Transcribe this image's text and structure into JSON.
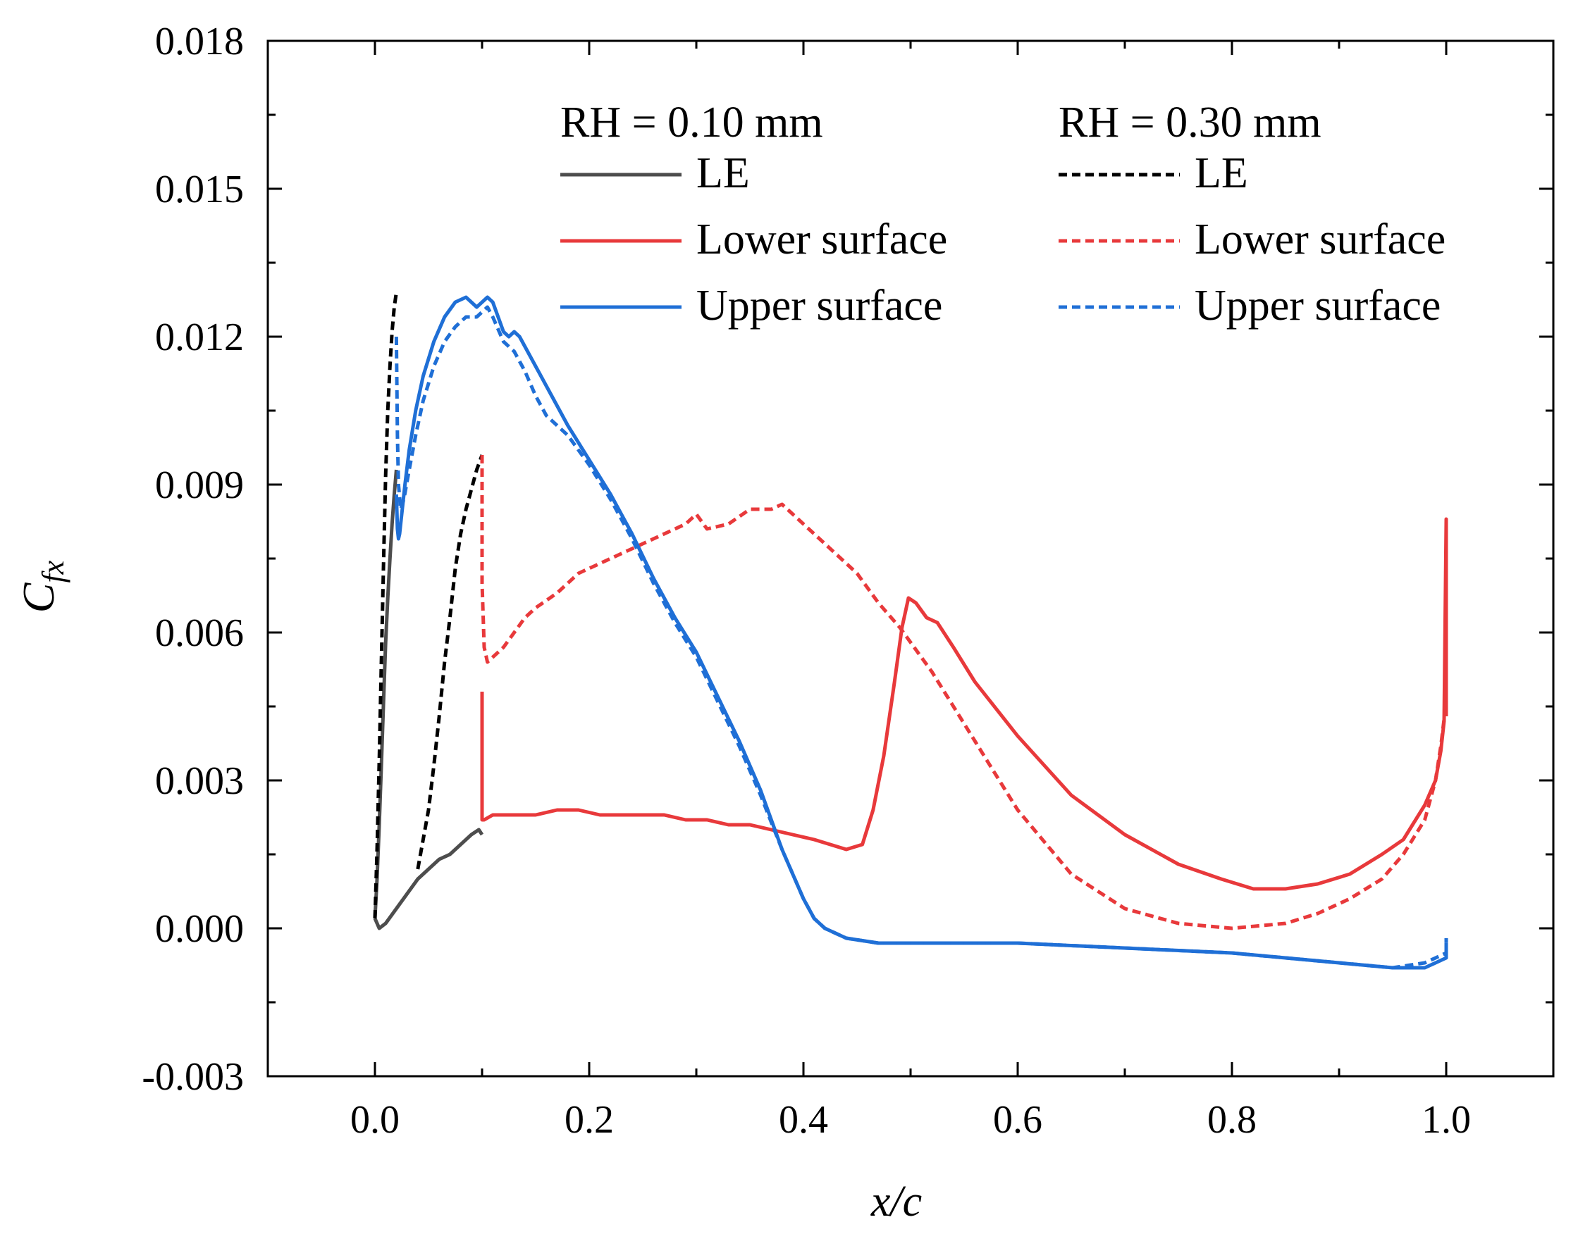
{
  "chart_data": {
    "type": "line",
    "title": "",
    "xlabel": "x/c",
    "ylabel_main": "C",
    "ylabel_sub": "fx",
    "xlim": [
      -0.1,
      1.1
    ],
    "ylim": [
      -0.003,
      0.018
    ],
    "xticks": [
      0.0,
      0.2,
      0.4,
      0.6,
      0.8,
      1.0
    ],
    "xtick_labels": [
      "0.0",
      "0.2",
      "0.4",
      "0.6",
      "0.8",
      "1.0"
    ],
    "xminor": [
      -0.1,
      0.1,
      0.3,
      0.5,
      0.7,
      0.9,
      1.1
    ],
    "yticks": [
      -0.003,
      0.0,
      0.003,
      0.006,
      0.009,
      0.012,
      0.015,
      0.018
    ],
    "ytick_labels": [
      "-0.003",
      "0.000",
      "0.003",
      "0.006",
      "0.009",
      "0.012",
      "0.015",
      "0.018"
    ],
    "yminor": [
      -0.0015,
      0.0015,
      0.0045,
      0.0075,
      0.0105,
      0.0135,
      0.0165
    ],
    "grid": false,
    "legend": {
      "position": "top-right",
      "group_titles": [
        "RH = 0.10 mm",
        "RH = 0.30 mm"
      ]
    },
    "series": [
      {
        "name": "LE",
        "group": "RH = 0.10 mm",
        "color": "#4d4d4d",
        "dash": "solid",
        "x": [
          0.0,
          0.002,
          0.004,
          0.006,
          0.008,
          0.01,
          0.012,
          0.014,
          0.016,
          0.018,
          0.02
        ],
        "y": [
          0.0002,
          0.001,
          0.0021,
          0.0033,
          0.0046,
          0.0058,
          0.0067,
          0.0075,
          0.0082,
          0.0088,
          0.0093
        ]
      },
      {
        "name": "LE",
        "group": "RH = 0.10 mm",
        "color": "#4d4d4d",
        "dash": "solid",
        "x": [
          0.0,
          0.004,
          0.01,
          0.02,
          0.03,
          0.04,
          0.05,
          0.06,
          0.07,
          0.08,
          0.09,
          0.097,
          0.1
        ],
        "y": [
          0.0002,
          0.0,
          0.0001,
          0.0004,
          0.0007,
          0.001,
          0.0012,
          0.0014,
          0.0015,
          0.0017,
          0.0019,
          0.002,
          0.0019
        ]
      },
      {
        "name": "LE",
        "group": "RH = 0.30 mm",
        "color": "#000000",
        "dash": "dashed",
        "x": [
          0.0,
          0.002,
          0.004,
          0.006,
          0.008,
          0.01,
          0.012,
          0.014,
          0.016,
          0.018,
          0.02
        ],
        "y": [
          0.0002,
          0.0016,
          0.0034,
          0.0054,
          0.0074,
          0.0092,
          0.0105,
          0.0114,
          0.0121,
          0.0126,
          0.0129
        ]
      },
      {
        "name": "LE",
        "group": "RH = 0.30 mm",
        "color": "#000000",
        "dash": "dashed",
        "x": [
          0.04,
          0.05,
          0.055,
          0.06,
          0.065,
          0.07,
          0.075,
          0.08,
          0.085,
          0.09,
          0.095,
          0.1
        ],
        "y": [
          0.0012,
          0.0024,
          0.0033,
          0.0043,
          0.0054,
          0.0063,
          0.0073,
          0.008,
          0.0085,
          0.0089,
          0.0093,
          0.0096
        ]
      },
      {
        "name": "Lower surface",
        "group": "RH = 0.10 mm",
        "color": "#e8393b",
        "dash": "solid",
        "x": [
          0.1,
          0.1,
          0.1,
          0.102,
          0.11,
          0.13,
          0.15,
          0.17,
          0.19,
          0.21,
          0.23,
          0.25,
          0.27,
          0.29,
          0.31,
          0.33,
          0.35,
          0.37,
          0.39,
          0.41,
          0.425,
          0.44,
          0.455,
          0.465,
          0.475,
          0.485,
          0.492,
          0.498,
          0.505,
          0.515,
          0.525,
          0.54,
          0.56,
          0.6,
          0.65,
          0.7,
          0.75,
          0.79,
          0.82,
          0.85,
          0.88,
          0.91,
          0.94,
          0.96,
          0.98,
          0.99,
          0.995,
          0.998,
          1.0,
          1.0,
          1.0
        ],
        "y": [
          0.0048,
          0.003,
          0.0022,
          0.0022,
          0.0023,
          0.0023,
          0.0023,
          0.0024,
          0.0024,
          0.0023,
          0.0023,
          0.0023,
          0.0023,
          0.0022,
          0.0022,
          0.0021,
          0.0021,
          0.002,
          0.0019,
          0.0018,
          0.0017,
          0.0016,
          0.0017,
          0.0024,
          0.0035,
          0.005,
          0.0061,
          0.0067,
          0.0066,
          0.0063,
          0.0062,
          0.0057,
          0.005,
          0.0039,
          0.0027,
          0.0019,
          0.0013,
          0.001,
          0.0008,
          0.0008,
          0.0009,
          0.0011,
          0.0015,
          0.0018,
          0.0025,
          0.003,
          0.0036,
          0.0042,
          0.0083,
          0.006,
          0.0043
        ]
      },
      {
        "name": "Lower surface",
        "group": "RH = 0.30 mm",
        "color": "#e8393b",
        "dash": "dashed",
        "x": [
          0.1,
          0.1,
          0.102,
          0.105,
          0.11,
          0.12,
          0.13,
          0.14,
          0.15,
          0.17,
          0.19,
          0.21,
          0.23,
          0.25,
          0.27,
          0.29,
          0.3,
          0.31,
          0.33,
          0.35,
          0.37,
          0.38,
          0.39,
          0.41,
          0.43,
          0.45,
          0.47,
          0.49,
          0.52,
          0.56,
          0.6,
          0.65,
          0.7,
          0.75,
          0.8,
          0.85,
          0.88,
          0.91,
          0.94,
          0.96,
          0.98,
          0.99,
          0.995,
          1.0
        ],
        "y": [
          0.0096,
          0.007,
          0.0057,
          0.0054,
          0.0055,
          0.0057,
          0.006,
          0.0063,
          0.0065,
          0.0068,
          0.0072,
          0.0074,
          0.0076,
          0.0078,
          0.008,
          0.0082,
          0.0084,
          0.0081,
          0.0082,
          0.0085,
          0.0085,
          0.0086,
          0.0084,
          0.008,
          0.0076,
          0.0072,
          0.0066,
          0.0061,
          0.0052,
          0.0038,
          0.0024,
          0.0011,
          0.0004,
          0.0001,
          0.0,
          0.0001,
          0.0003,
          0.0006,
          0.001,
          0.0015,
          0.0022,
          0.003,
          0.0037,
          0.0046
        ]
      },
      {
        "name": "Upper surface",
        "group": "RH = 0.10 mm",
        "color": "#1f6fd6",
        "dash": "solid",
        "x": [
          0.02,
          0.021,
          0.022,
          0.023,
          0.025,
          0.028,
          0.032,
          0.038,
          0.045,
          0.055,
          0.065,
          0.075,
          0.085,
          0.095,
          0.1,
          0.105,
          0.11,
          0.115,
          0.12,
          0.125,
          0.13,
          0.135,
          0.14,
          0.15,
          0.16,
          0.17,
          0.18,
          0.2,
          0.22,
          0.24,
          0.26,
          0.28,
          0.3,
          0.32,
          0.34,
          0.36,
          0.38,
          0.4,
          0.41,
          0.42,
          0.44,
          0.47,
          0.5,
          0.55,
          0.6,
          0.7,
          0.8,
          0.85,
          0.9,
          0.95,
          0.98,
          1.0,
          1.0
        ],
        "y": [
          0.0088,
          0.0081,
          0.0079,
          0.008,
          0.0084,
          0.009,
          0.0097,
          0.0105,
          0.0112,
          0.0119,
          0.0124,
          0.0127,
          0.0128,
          0.0126,
          0.0127,
          0.0128,
          0.0127,
          0.0124,
          0.0121,
          0.012,
          0.0121,
          0.012,
          0.0118,
          0.0114,
          0.011,
          0.0106,
          0.0102,
          0.0095,
          0.0088,
          0.008,
          0.0071,
          0.0063,
          0.0056,
          0.0047,
          0.0038,
          0.0028,
          0.0016,
          0.0006,
          0.0002,
          0.0,
          -0.0002,
          -0.0003,
          -0.0003,
          -0.0003,
          -0.0003,
          -0.0004,
          -0.0005,
          -0.0006,
          -0.0007,
          -0.0008,
          -0.0008,
          -0.0006,
          -0.0003
        ]
      },
      {
        "name": "Upper surface",
        "group": "RH = 0.30 mm",
        "color": "#1f6fd6",
        "dash": "dashed",
        "x": [
          0.02,
          0.021,
          0.022,
          0.024,
          0.027,
          0.032,
          0.038,
          0.045,
          0.055,
          0.065,
          0.075,
          0.085,
          0.095,
          0.1,
          0.105,
          0.11,
          0.12,
          0.13,
          0.14,
          0.15,
          0.16,
          0.17,
          0.18,
          0.2,
          0.22,
          0.24,
          0.26,
          0.28,
          0.3,
          0.32,
          0.34,
          0.36,
          0.38,
          0.4,
          0.41,
          0.42,
          0.44,
          0.47,
          0.5,
          0.55,
          0.6,
          0.7,
          0.8,
          0.85,
          0.9,
          0.95,
          0.98,
          1.0,
          1.0
        ],
        "y": [
          0.012,
          0.01,
          0.009,
          0.0085,
          0.0087,
          0.0093,
          0.01,
          0.0107,
          0.0114,
          0.0119,
          0.0122,
          0.0124,
          0.0124,
          0.0125,
          0.0126,
          0.0124,
          0.0119,
          0.0117,
          0.0113,
          0.0108,
          0.0104,
          0.0102,
          0.01,
          0.0094,
          0.0087,
          0.0079,
          0.007,
          0.0062,
          0.0055,
          0.0046,
          0.0037,
          0.0027,
          0.0016,
          0.0006,
          0.0002,
          0.0,
          -0.0002,
          -0.0003,
          -0.0003,
          -0.0003,
          -0.0003,
          -0.0004,
          -0.0005,
          -0.0006,
          -0.0007,
          -0.0008,
          -0.0007,
          -0.0005,
          -0.0002
        ]
      }
    ]
  }
}
